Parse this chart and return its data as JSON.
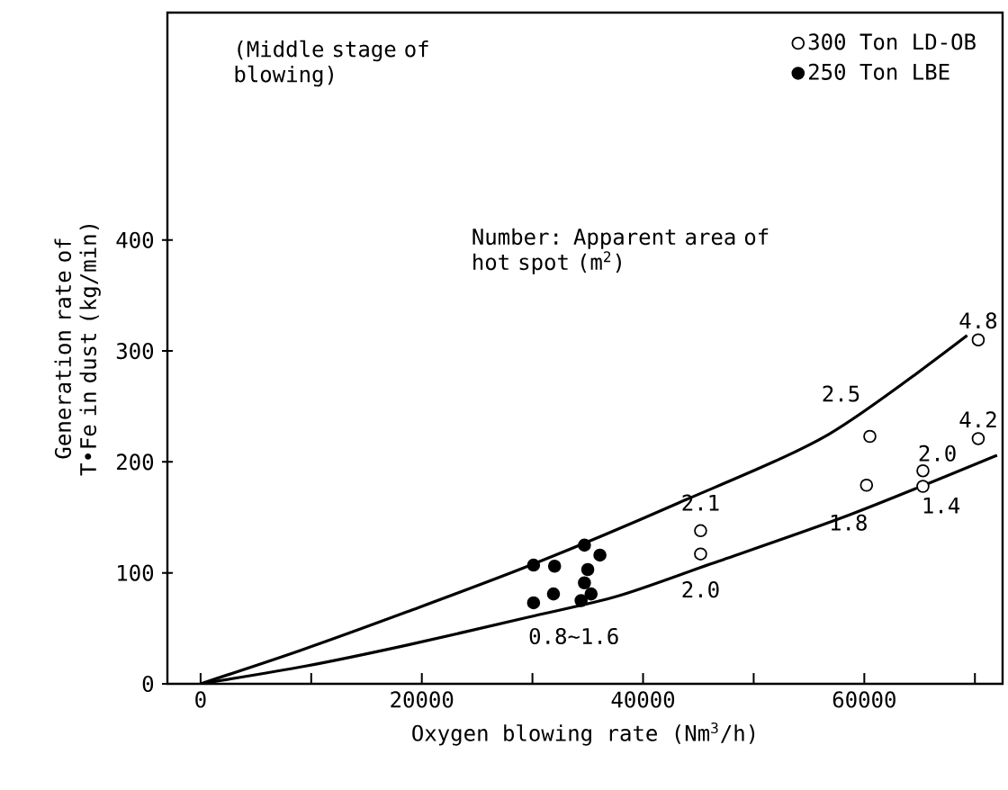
{
  "chart_data": {
    "type": "scatter",
    "xlabel": "Oxygen blowing rate (Nm$^{3}$/h)",
    "ylabel": "Generation rate of T•Fe in dust (kg/min)",
    "xlim": [
      -3000,
      72500
    ],
    "ylim": [
      0,
      605
    ],
    "xticks": [
      0,
      {
        "value": 10000,
        "label": null
      },
      20000,
      {
        "value": 30000,
        "label": null
      },
      40000,
      {
        "value": 50000,
        "label": null
      },
      60000,
      {
        "value": 70000,
        "label": null
      }
    ],
    "yticks": [
      0,
      100,
      200,
      300,
      400
    ],
    "grid": false,
    "legend": "top right",
    "marker": "circle",
    "series": [
      {
        "name": "300 Ton LD-OB",
        "color": "#000000",
        "x": [
          70300,
          60500,
          70300,
          60200,
          65300,
          65300,
          45200,
          45200
        ],
        "values": [
          310,
          223,
          221,
          179,
          192,
          178,
          138,
          117
        ]
      },
      {
        "name": "250 Ton LBE",
        "color": "#000000",
        "x": [
          30100,
          32000,
          34700,
          36100,
          35000,
          34700,
          30100,
          31900,
          34400,
          35300
        ],
        "values": [
          107,
          106,
          125,
          116,
          103,
          91,
          73,
          81,
          75,
          81
        ]
      },
      {
        "type": "line",
        "color": "#000000",
        "marker": "none",
        "line_style": "solid",
        "x": [
          0,
          9000,
          18700,
          30100,
          43200,
          56800,
          69300
        ],
        "values": [
          0,
          30,
          65,
          108,
          163,
          225,
          314
        ]
      },
      {
        "type": "line",
        "color": "#000000",
        "marker": "none",
        "line_style": "solid",
        "x": [
          0,
          9500,
          18700,
          29600,
          37700,
          46100,
          58600,
          72000
        ],
        "values": [
          0,
          16,
          35,
          60,
          79,
          108,
          152,
          206
        ]
      }
    ],
    "annotations": [
      "(Middle stage of blowing)",
      "Number: Apparent area of hot spot (m$^{2}$)",
      {
        "text": "4.8",
        "x": 70300,
        "y": 310
      },
      {
        "text": "2.5",
        "x": 60500,
        "y": 223
      },
      {
        "text": "4.2",
        "x": 70300,
        "y": 221
      },
      {
        "text": "2.0",
        "x": 65300,
        "y": 192
      },
      {
        "text": "1.8",
        "x": 60200,
        "y": 179
      },
      {
        "text": "1.4",
        "x": 65300,
        "y": 178
      },
      {
        "text": "2.1",
        "x": 45200,
        "y": 138
      },
      {
        "text": "2.0",
        "x": 45200,
        "y": 117
      },
      {
        "text": "0.8∼1.6",
        "x": 34400,
        "y": 75
      }
    ]
  }
}
